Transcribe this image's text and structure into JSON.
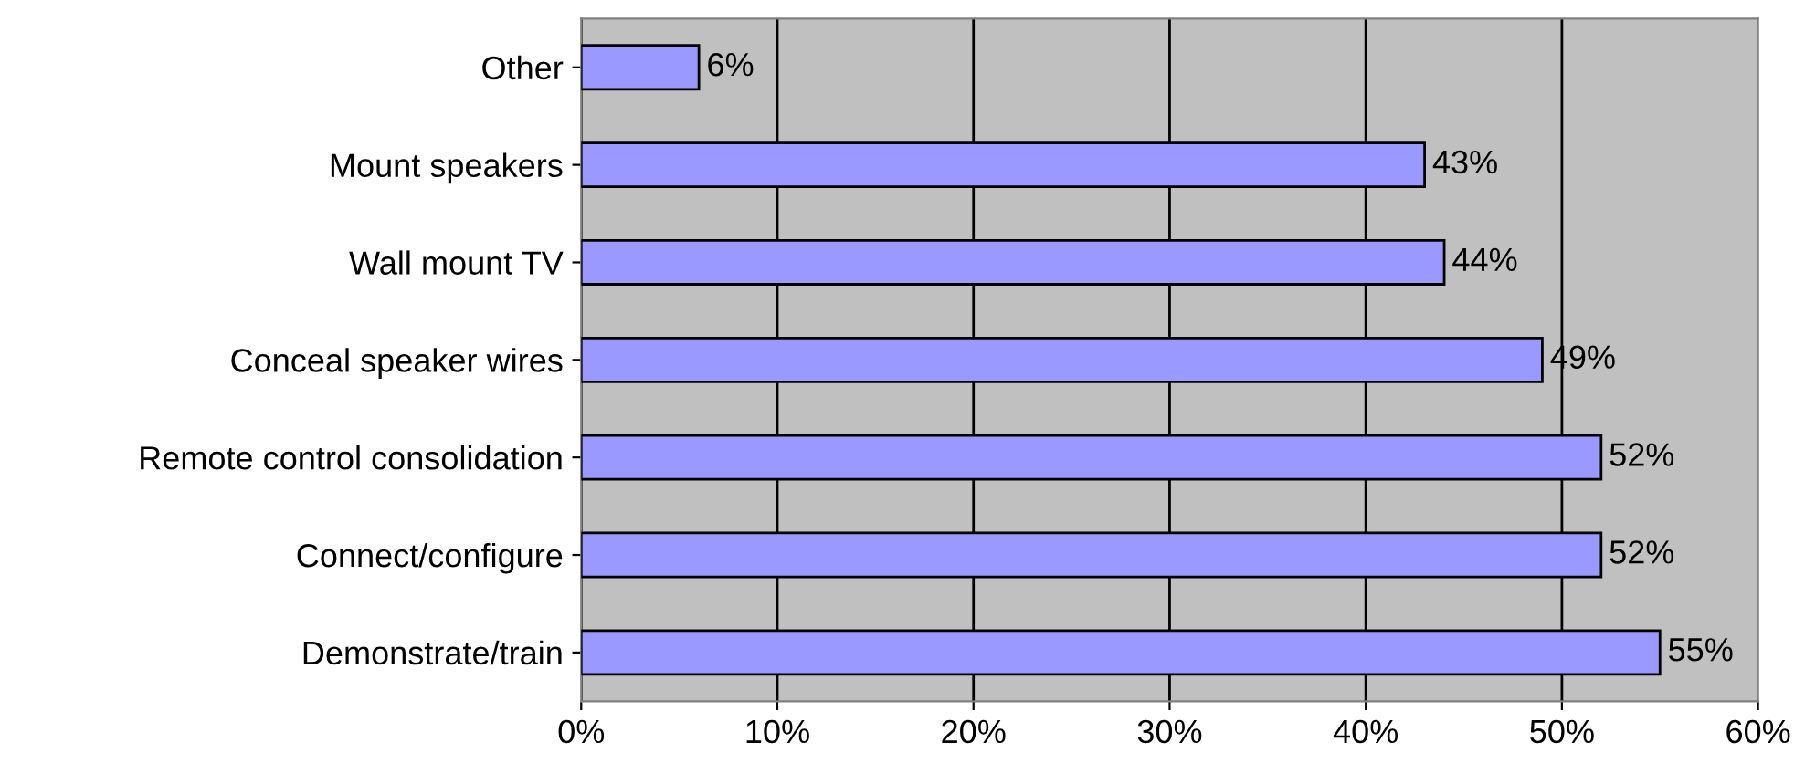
{
  "chart_data": {
    "type": "bar",
    "orientation": "horizontal",
    "categories": [
      "Other",
      "Mount speakers",
      "Wall mount TV",
      "Conceal speaker wires",
      "Remote control consolidation",
      "Connect/configure",
      "Demonstrate/train"
    ],
    "values": [
      6,
      43,
      44,
      49,
      52,
      52,
      55
    ],
    "value_labels": [
      "6%",
      "43%",
      "44%",
      "49%",
      "52%",
      "52%",
      "55%"
    ],
    "color": "#9999ff",
    "xlim": [
      0,
      60
    ],
    "xticks": [
      {
        "value": 0,
        "label": "0%"
      },
      {
        "value": 10,
        "label": "10%"
      },
      {
        "value": 20,
        "label": "20%"
      },
      {
        "value": 30,
        "label": "30%"
      },
      {
        "value": 40,
        "label": "40%"
      },
      {
        "value": 50,
        "label": "50%"
      },
      {
        "value": 60,
        "label": "60%"
      }
    ],
    "grid": "x",
    "legend": false
  }
}
